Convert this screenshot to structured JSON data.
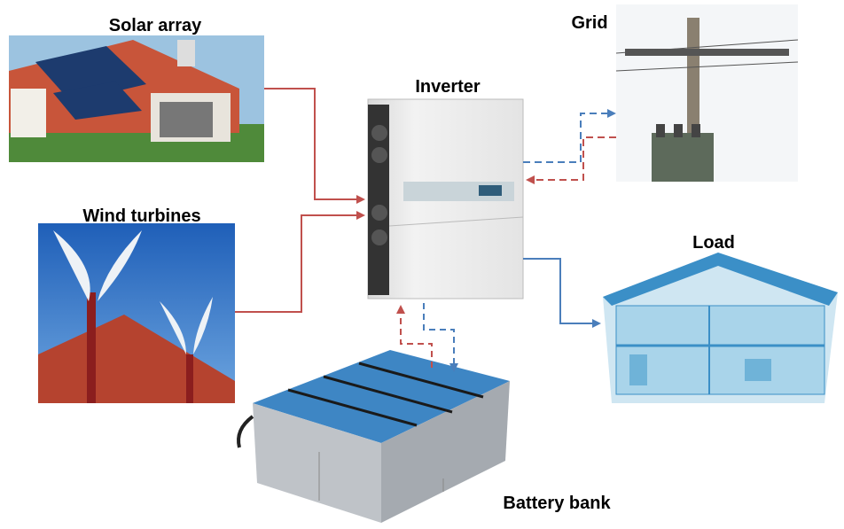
{
  "nodes": [
    {
      "label": "Solar array"
    },
    {
      "label": "Grid"
    },
    {
      "label": "Inverter"
    },
    {
      "label": "Wind turbines"
    },
    {
      "label": "Load"
    },
    {
      "label": "Battery bank"
    }
  ]
}
